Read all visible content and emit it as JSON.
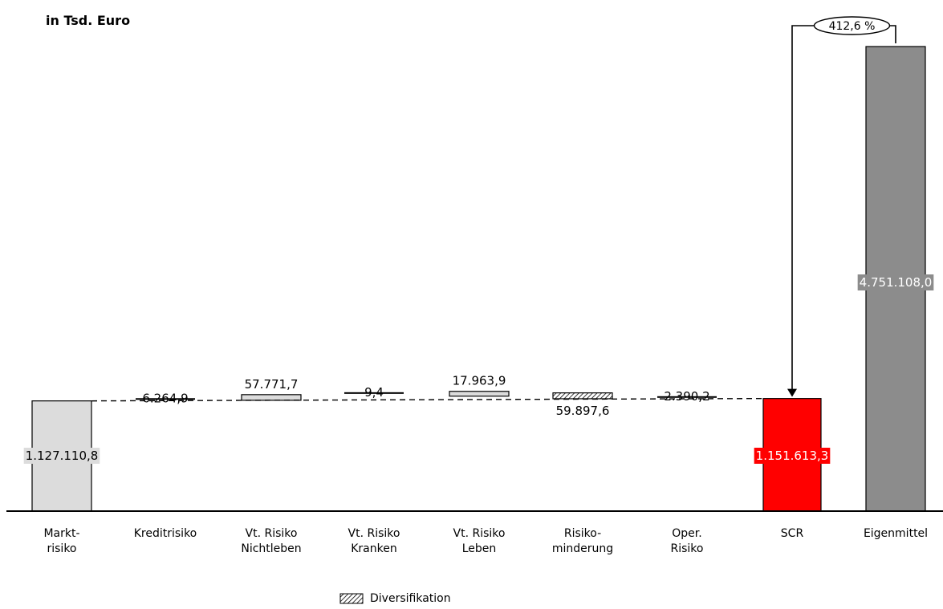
{
  "unit_label": "in Tsd. Euro",
  "legend": {
    "diversification": "Diversifikation"
  },
  "colors": {
    "start": "#dcdcdc",
    "step": "#dcdcdc",
    "diversification_fill": "#ffffff",
    "scr": "#ff0000",
    "own_funds": "#8c8c8c",
    "axis": "#000000"
  },
  "chart_data": {
    "type": "bar",
    "subtype": "waterfall",
    "categories": [
      "Markt-\nrisiko",
      "Kreditrisiko",
      "Vt. Risiko\nNichtleben",
      "Vt. Risiko\nKranken",
      "Vt. Risiko\nLeben",
      "Risiko-\nminderung",
      "Oper.\nRisiko",
      "SCR",
      "Eigenmittel"
    ],
    "values": [
      1127110.8,
      6264.9,
      57771.7,
      9.4,
      17963.9,
      -59897.6,
      2390.2,
      1151613.3,
      4751108.0
    ],
    "labels": [
      "1.127.110,8",
      "6.264,9",
      "57.771,7",
      "9,4",
      "17.963,9",
      "59.897,6",
      "2.390,2",
      "1.151.613,3",
      "4.751.108,0"
    ],
    "kinds": [
      "total",
      "step",
      "step",
      "step",
      "step",
      "diversification",
      "step",
      "total",
      "total"
    ],
    "coverage_ratio_label": "412,6 %",
    "coverage_ratio_from": "Eigenmittel",
    "coverage_ratio_to": "SCR",
    "ylim": [
      0,
      5000000
    ],
    "grid": false
  }
}
